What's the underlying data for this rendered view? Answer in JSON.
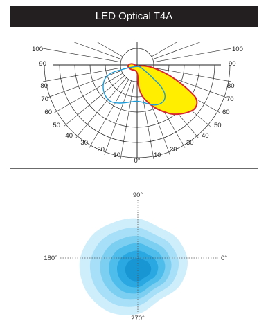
{
  "title": "LED Optical T4A",
  "polar_chart": {
    "radial_labels": [
      "0°",
      "10",
      "20",
      "30",
      "40",
      "50",
      "60",
      "70",
      "80",
      "90",
      "100"
    ],
    "colors": {
      "fill": "#ffee00",
      "outline_red": "#d7262e",
      "outline_blue": "#1d9bd7"
    }
  },
  "iso_chart": {
    "angle_labels": {
      "top": "90°",
      "left": "180°",
      "right": "0°",
      "bottom": "270°"
    },
    "colors": [
      "#cfeefb",
      "#a6dff7",
      "#7dcff2",
      "#4fbdec",
      "#2aa8e2",
      "#1895d3"
    ]
  },
  "chart_data": [
    {
      "type": "polar",
      "title": "LED Optical T4A",
      "angle_labels": [
        "0°",
        "10",
        "20",
        "30",
        "40",
        "50",
        "60",
        "70",
        "80",
        "90",
        "100"
      ],
      "series": [
        {
          "color": "#d7262e",
          "fill": "#ffee00"
        },
        {
          "color": "#1d9bd7"
        }
      ]
    },
    {
      "type": "contour",
      "axis_labels": [
        "90°",
        "180°",
        "0°",
        "270°"
      ],
      "levels": 6
    }
  ]
}
